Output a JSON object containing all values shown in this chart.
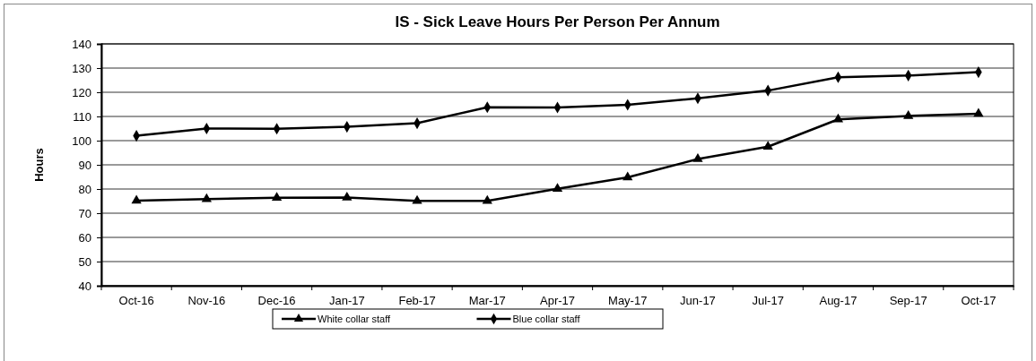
{
  "chart_data": {
    "type": "line",
    "title": "IS - Sick Leave Hours Per Person Per Annum",
    "ylabel": "Hours",
    "categories": [
      "Oct-16",
      "Nov-16",
      "Dec-16",
      "Jan-17",
      "Feb-17",
      "Mar-17",
      "Apr-17",
      "May-17",
      "Jun-17",
      "Jul-17",
      "Aug-17",
      "Sep-17",
      "Oct-17"
    ],
    "series": [
      {
        "name": "White collar staff",
        "color": "#000000",
        "marker": "triangle",
        "values": [
          75.2,
          75.8,
          76.4,
          76.5,
          75.1,
          75.1,
          80.1,
          84.8,
          92.4,
          97.5,
          108.8,
          110.2,
          111.1
        ]
      },
      {
        "name": "Blue collar staff",
        "color": "#000000",
        "marker": "diamond",
        "values": [
          102,
          105,
          104.9,
          105.7,
          107.2,
          113.8,
          113.7,
          114.8,
          117.5,
          120.7,
          126.2,
          126.9,
          128.3
        ]
      }
    ],
    "ylim": [
      40,
      140
    ],
    "yticks": [
      40,
      50,
      60,
      70,
      80,
      90,
      100,
      110,
      120,
      130,
      140
    ],
    "grid": "y",
    "legend": "bottom"
  }
}
